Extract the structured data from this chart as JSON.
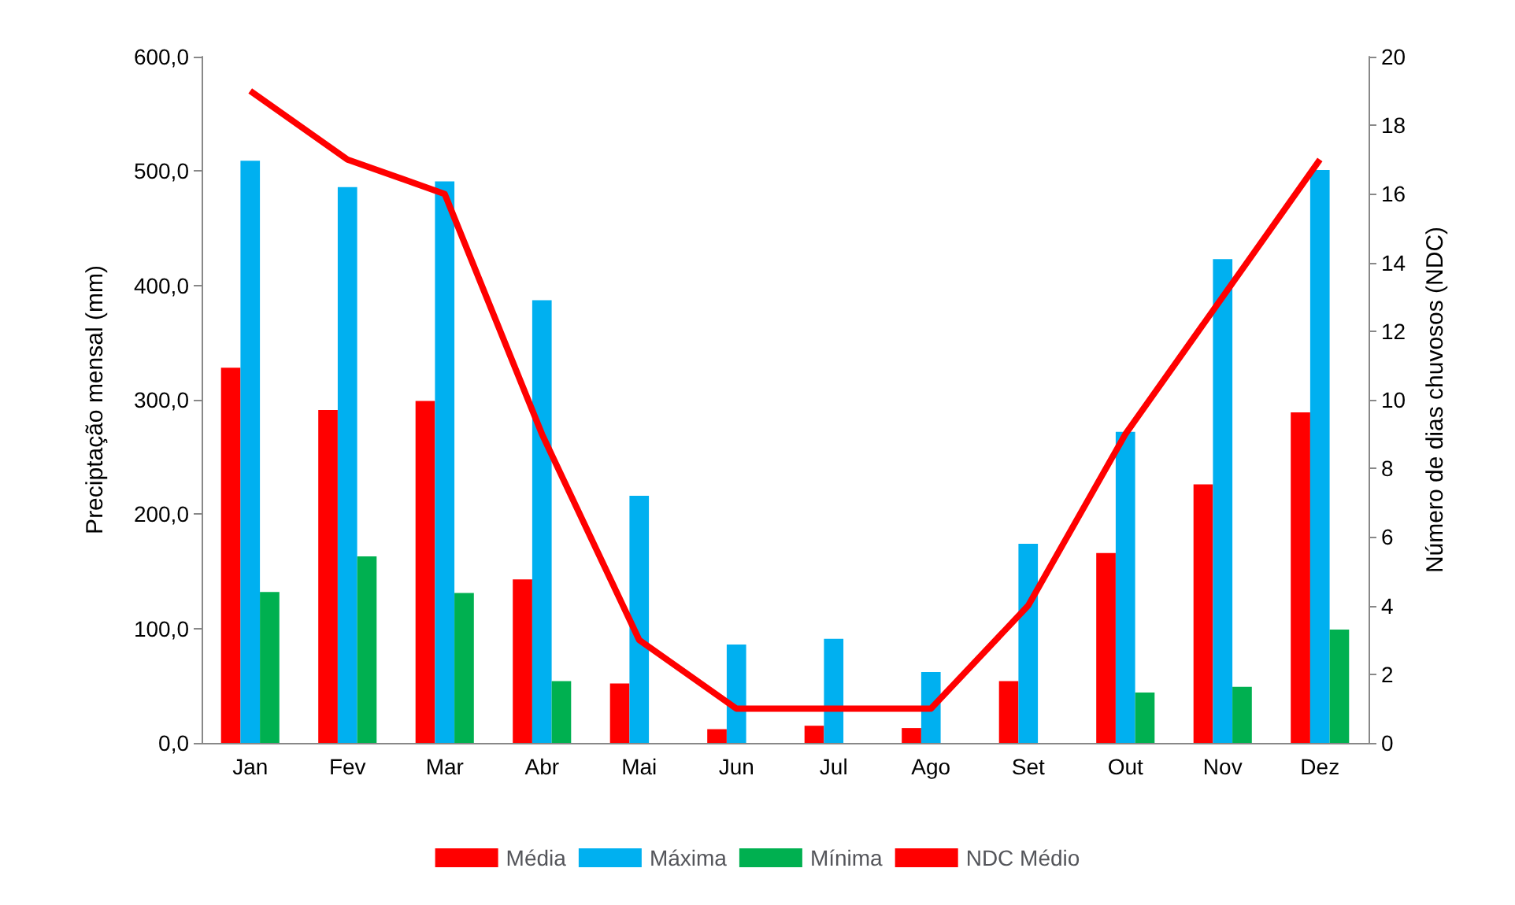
{
  "chart_data": {
    "type": "bar",
    "ylabel": "Preciptação mensal (mm)",
    "y2label": "Número de dias chuvosos (NDC)",
    "categories": [
      "Jan",
      "Fev",
      "Mar",
      "Abr",
      "Mai",
      "Jun",
      "Jul",
      "Ago",
      "Set",
      "Out",
      "Nov",
      "Dez"
    ],
    "series": [
      {
        "name": "Média",
        "color": "#ff0000",
        "values": [
          328,
          291,
          299,
          143,
          52,
          12,
          15,
          13,
          54,
          166,
          226,
          289
        ]
      },
      {
        "name": "Máxima",
        "color": "#00b0f0",
        "values": [
          509,
          486,
          491,
          387,
          216,
          86,
          91,
          62,
          174,
          272,
          423,
          501
        ]
      },
      {
        "name": "Mínima",
        "color": "#00b050",
        "values": [
          132,
          163,
          131,
          54,
          0,
          0,
          0,
          0,
          0,
          44,
          49,
          99
        ]
      },
      {
        "name": "NDC Médio",
        "color": "#ff0000",
        "type": "line",
        "axis": "y2",
        "values": [
          19,
          17,
          16,
          9,
          3,
          1,
          1,
          1,
          4,
          9,
          13,
          17
        ]
      }
    ],
    "ylim": [
      0,
      600
    ],
    "yticks": [
      {
        "value": 0,
        "label": "0,0"
      },
      {
        "value": 100,
        "label": "100,0"
      },
      {
        "value": 200,
        "label": "200,0"
      },
      {
        "value": 300,
        "label": "300,0"
      },
      {
        "value": 400,
        "label": "400,0"
      },
      {
        "value": 500,
        "label": "500,0"
      },
      {
        "value": 600,
        "label": "600,0"
      }
    ],
    "y2lim": [
      0,
      20
    ],
    "y2ticks": [
      0,
      2,
      4,
      6,
      8,
      10,
      12,
      14,
      16,
      18,
      20
    ],
    "grid": false,
    "legend": "bottom",
    "marker": "none"
  }
}
